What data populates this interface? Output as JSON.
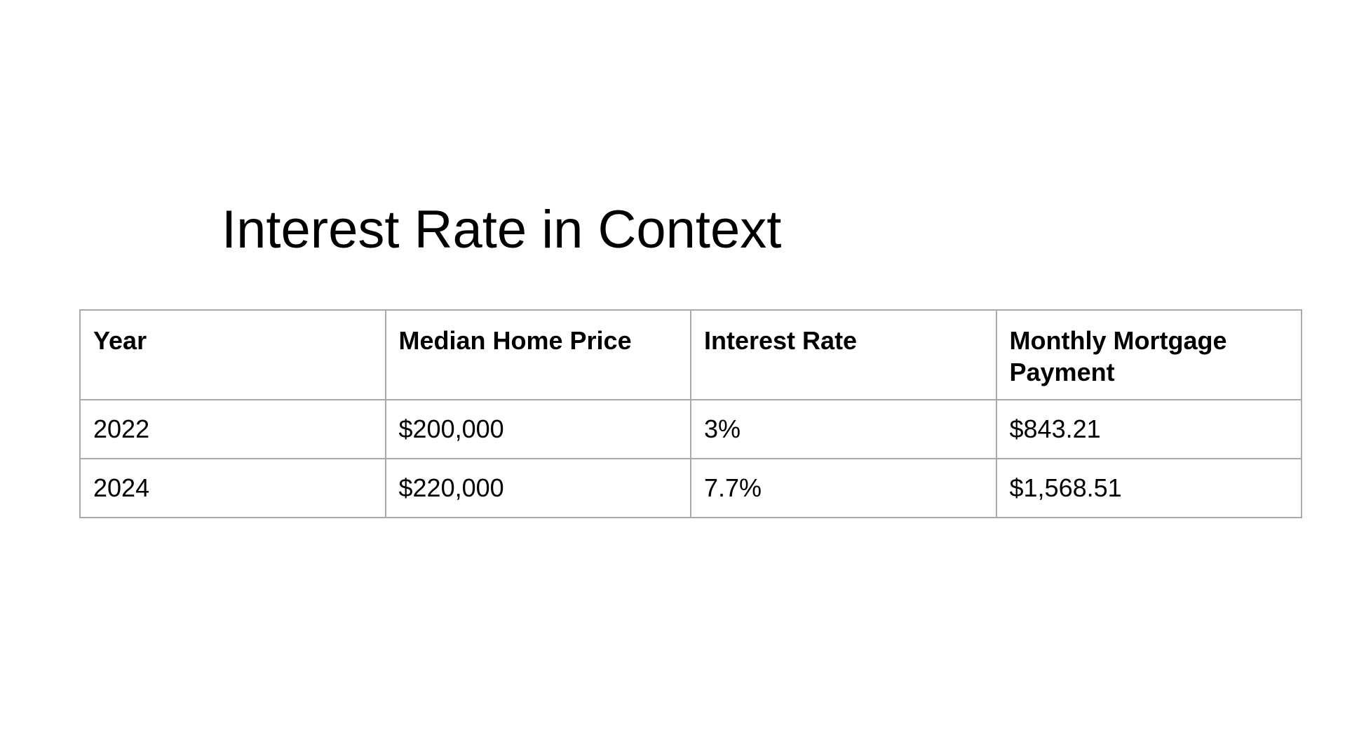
{
  "slide": {
    "title": "Interest Rate in Context"
  },
  "table": {
    "headers": [
      "Year",
      "Median Home Price",
      "Interest Rate",
      "Monthly Mortgage Payment"
    ],
    "rows": [
      [
        "2022",
        "$200,000",
        "3%",
        "$843.21"
      ],
      [
        "2024",
        "$220,000",
        "7.7%",
        "$1,568.51"
      ]
    ]
  },
  "colors": {
    "text": "#000000",
    "border": "#a9a9a9",
    "background": "#ffffff"
  }
}
